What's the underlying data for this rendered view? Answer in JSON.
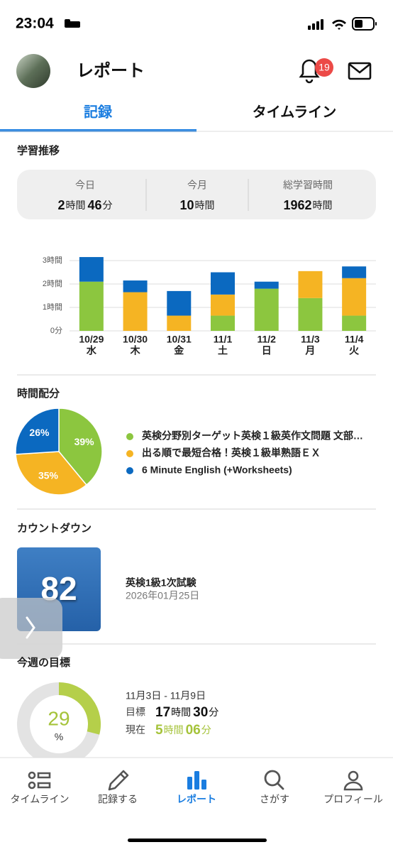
{
  "status_bar": {
    "time": "23:04"
  },
  "header": {
    "title": "レポート",
    "notification_count": 19
  },
  "tabs": {
    "items": [
      "記録",
      "タイムライン"
    ],
    "active": 0
  },
  "summary": {
    "title": "学習推移",
    "stats": [
      {
        "label": "今日",
        "parts": [
          "2",
          "時間",
          "46",
          "分"
        ]
      },
      {
        "label": "今月",
        "parts": [
          "10",
          "時間"
        ]
      },
      {
        "label": "総学習時間",
        "parts": [
          "1962",
          "時間"
        ]
      }
    ]
  },
  "chart_data": [
    {
      "type": "bar",
      "stacked": true,
      "categories": [
        "10/29",
        "10/30",
        "10/31",
        "11/1",
        "11/2",
        "11/3",
        "11/4"
      ],
      "category_sublabels": [
        "水",
        "木",
        "金",
        "土",
        "日",
        "月",
        "火"
      ],
      "series": [
        {
          "color": "#8cc63f",
          "values": [
            2.1,
            0,
            0,
            0.65,
            1.8,
            1.4,
            0.65
          ]
        },
        {
          "color": "#f5b423",
          "values": [
            0,
            1.65,
            0.65,
            0.9,
            0,
            1.15,
            1.6
          ]
        },
        {
          "color": "#0b69c0",
          "values": [
            1.05,
            0.5,
            1.05,
            0.95,
            0.3,
            0,
            0.5
          ]
        }
      ],
      "ylim": [
        0,
        3
      ],
      "yticks": [
        {
          "value": 0,
          "label": "0分"
        },
        {
          "value": 1,
          "label": "1時間"
        },
        {
          "value": 2,
          "label": "2時間"
        },
        {
          "value": 3,
          "label": "3時間"
        }
      ],
      "grid": true
    },
    {
      "type": "pie",
      "categories": [
        "英検分野別ターゲット英検１級英作文問題 文部…",
        "出る順で最短合格！英検１級単熟語ＥＸ",
        "6 Minute English (+Worksheets)"
      ],
      "values": [
        39,
        35,
        26
      ],
      "value_labels": [
        "39%",
        "35%",
        "26%"
      ],
      "colors": [
        "#8cc63f",
        "#f5b423",
        "#0b69c0"
      ],
      "legend": "right"
    }
  ],
  "distribution": {
    "title": "時間配分"
  },
  "countdown": {
    "title": "カウントダウン",
    "days": 82,
    "event": "英検1級1次試験",
    "date": "2026年01月25日"
  },
  "weekly_goal": {
    "title": "今週の目標",
    "progress": 29,
    "unit": "%",
    "range": "11月3日 - 11月9日",
    "rows": [
      {
        "label": "目標",
        "parts": [
          "17",
          "時間",
          "30",
          "分"
        ]
      },
      {
        "label": "現在",
        "parts": [
          "5",
          "時間",
          "06",
          "分"
        ]
      }
    ]
  },
  "nav": {
    "items": [
      "タイムライン",
      "記録する",
      "レポート",
      "さがす",
      "プロフィール"
    ],
    "active": 2
  }
}
